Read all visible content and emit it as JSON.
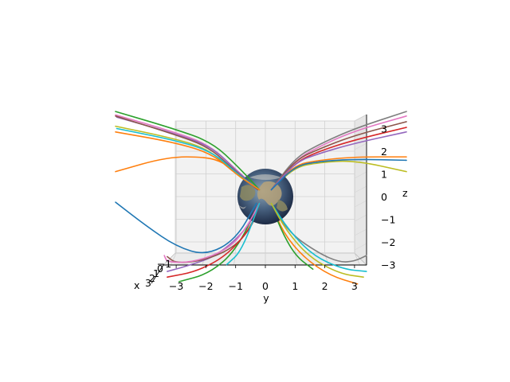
{
  "chart_data": {
    "type": "line",
    "projection": "3d",
    "xlabel": "x",
    "ylabel": "y",
    "zlabel": "z",
    "y_ticks": [
      "−3",
      "−2",
      "−1",
      "0",
      "1",
      "2",
      "3"
    ],
    "z_ticks": [
      "3",
      "2",
      "1",
      "0",
      "−1",
      "−2",
      "−3"
    ],
    "x_ticks": [
      "3",
      "2",
      "1",
      "0",
      "−1"
    ],
    "ylim": [
      -3.3,
      3.3
    ],
    "zlim": [
      -3.3,
      3.3
    ],
    "grid": true,
    "legend": "none",
    "sphere": {
      "radius": 1
    },
    "series_colors": [
      "#1f77b4",
      "#ff7f0e",
      "#2ca02c",
      "#d62728",
      "#9467bd",
      "#8c564b",
      "#e377c2",
      "#7f7f7f",
      "#bcbd22",
      "#17becf"
    ],
    "series": [
      {
        "color": "#2ca02c",
        "points": [
          [
            -5.1,
            3.75
          ],
          [
            -3.1,
            3.0
          ],
          [
            -1.8,
            2.4
          ],
          [
            -0.9,
            1.3
          ],
          [
            -0.2,
            0.3
          ]
        ]
      },
      {
        "color": "#e377c2",
        "points": [
          [
            -5.2,
            3.6
          ],
          [
            -3.2,
            2.9
          ],
          [
            -1.9,
            2.3
          ],
          [
            -1.0,
            1.2
          ],
          [
            -0.25,
            0.3
          ]
        ]
      },
      {
        "color": "#8c564b",
        "points": [
          [
            -5.1,
            3.55
          ],
          [
            -3.2,
            2.8
          ],
          [
            -1.9,
            2.2
          ],
          [
            -1.0,
            1.1
          ],
          [
            -0.25,
            0.3
          ]
        ]
      },
      {
        "color": "#9467bd",
        "points": [
          [
            -5.0,
            3.5
          ],
          [
            -3.1,
            2.8
          ],
          [
            -1.8,
            2.2
          ],
          [
            -0.95,
            1.1
          ],
          [
            -0.2,
            0.3
          ]
        ]
      },
      {
        "color": "#17becf",
        "points": [
          [
            -5.0,
            3.0
          ],
          [
            -3.1,
            2.5
          ],
          [
            -1.8,
            2.0
          ],
          [
            -0.95,
            1.0
          ],
          [
            -0.2,
            0.3
          ]
        ]
      },
      {
        "color": "#bcbd22",
        "points": [
          [
            -5.1,
            3.1
          ],
          [
            -3.2,
            2.6
          ],
          [
            -1.9,
            2.1
          ],
          [
            -1.0,
            1.0
          ],
          [
            -0.25,
            0.3
          ]
        ]
      },
      {
        "color": "#ff7f0e",
        "points": [
          [
            -5.1,
            2.85
          ],
          [
            -3.1,
            2.4
          ],
          [
            -1.8,
            1.9
          ],
          [
            -1.0,
            1.0
          ],
          [
            -0.2,
            0.3
          ]
        ]
      },
      {
        "color": "#ff7f0e",
        "points": [
          [
            -5.1,
            1.1
          ],
          [
            -3.3,
            1.75
          ],
          [
            -2.0,
            1.75
          ],
          [
            -1.4,
            1.5
          ],
          [
            -0.9,
            1.0
          ],
          [
            -0.3,
            0.3
          ]
        ]
      },
      {
        "color": "#7f7f7f",
        "points": [
          [
            4.9,
            3.75
          ],
          [
            3.0,
            3.0
          ],
          [
            1.8,
            2.3
          ],
          [
            1.0,
            1.7
          ],
          [
            0.2,
            0.3
          ]
        ]
      },
      {
        "color": "#e377c2",
        "points": [
          [
            4.9,
            3.55
          ],
          [
            3.0,
            2.9
          ],
          [
            1.8,
            2.2
          ],
          [
            1.0,
            1.6
          ],
          [
            0.2,
            0.3
          ]
        ]
      },
      {
        "color": "#8c564b",
        "points": [
          [
            4.9,
            3.3
          ],
          [
            3.0,
            2.7
          ],
          [
            1.8,
            2.1
          ],
          [
            1.0,
            1.6
          ],
          [
            0.2,
            0.3
          ]
        ]
      },
      {
        "color": "#d62728",
        "points": [
          [
            4.9,
            3.05
          ],
          [
            3.0,
            2.5
          ],
          [
            1.8,
            2.0
          ],
          [
            1.0,
            1.5
          ],
          [
            0.2,
            0.3
          ]
        ]
      },
      {
        "color": "#9467bd",
        "points": [
          [
            4.9,
            2.85
          ],
          [
            3.0,
            2.35
          ],
          [
            1.8,
            1.9
          ],
          [
            1.0,
            1.5
          ],
          [
            0.2,
            0.3
          ]
        ]
      },
      {
        "color": "#ff7f0e",
        "points": [
          [
            4.9,
            1.75
          ],
          [
            3.0,
            1.75
          ],
          [
            1.8,
            1.6
          ],
          [
            1.0,
            1.4
          ],
          [
            0.2,
            0.3
          ]
        ]
      },
      {
        "color": "#1f77b4",
        "points": [
          [
            4.9,
            1.6
          ],
          [
            3.0,
            1.65
          ],
          [
            1.8,
            1.55
          ],
          [
            1.0,
            1.35
          ],
          [
            0.2,
            0.3
          ]
        ]
      },
      {
        "color": "#bcbd22",
        "points": [
          [
            4.9,
            1.1
          ],
          [
            3.0,
            1.6
          ],
          [
            1.8,
            1.5
          ],
          [
            1.0,
            1.3
          ],
          [
            0.2,
            0.3
          ]
        ]
      },
      {
        "color": "#1f77b4",
        "points": [
          [
            -5.1,
            -0.25
          ],
          [
            -4.0,
            -1.3
          ],
          [
            -3.0,
            -2.2
          ],
          [
            -2.0,
            -2.6
          ],
          [
            -1.0,
            -1.9
          ],
          [
            -0.3,
            -0.3
          ]
        ]
      },
      {
        "color": "#2ca02c",
        "points": [
          [
            -2.9,
            -3.75
          ],
          [
            -1.9,
            -3.4
          ],
          [
            -1.0,
            -2.4
          ],
          [
            -0.2,
            -0.3
          ]
        ]
      },
      {
        "color": "#d62728",
        "points": [
          [
            -3.3,
            -3.55
          ],
          [
            -2.3,
            -3.3
          ],
          [
            -1.3,
            -2.6
          ],
          [
            -0.5,
            -1.4
          ],
          [
            -0.2,
            -0.3
          ]
        ]
      },
      {
        "color": "#9467bd",
        "points": [
          [
            -3.3,
            -3.3
          ],
          [
            -2.6,
            -3.05
          ],
          [
            -1.6,
            -2.6
          ],
          [
            -0.6,
            -1.4
          ],
          [
            -0.2,
            -0.3
          ]
        ]
      },
      {
        "color": "#e377c2",
        "points": [
          [
            -3.4,
            -2.6
          ],
          [
            -3.3,
            -2.9
          ],
          [
            -2.4,
            -2.9
          ],
          [
            -1.2,
            -2.3
          ],
          [
            -0.6,
            -1.3
          ],
          [
            -0.2,
            -0.3
          ]
        ]
      },
      {
        "color": "#8c564b",
        "points": [
          [
            -3.3,
            -2.65
          ],
          [
            -3.0,
            -2.95
          ],
          [
            -2.0,
            -2.8
          ],
          [
            -1.0,
            -2.2
          ],
          [
            -0.4,
            -1.2
          ],
          [
            -0.2,
            -0.3
          ]
        ]
      },
      {
        "color": "#17becf",
        "points": [
          [
            -1.3,
            -3.0
          ],
          [
            -0.8,
            -2.4
          ],
          [
            -0.2,
            -0.3
          ]
        ]
      },
      {
        "color": "#7f7f7f",
        "points": [
          [
            0.2,
            -0.3
          ],
          [
            0.8,
            -1.6
          ],
          [
            1.8,
            -2.5
          ],
          [
            2.5,
            -2.9
          ],
          [
            3.0,
            -2.85
          ],
          [
            3.4,
            -2.6
          ]
        ]
      },
      {
        "color": "#17becf",
        "points": [
          [
            0.2,
            -0.3
          ],
          [
            0.8,
            -1.5
          ],
          [
            1.6,
            -2.6
          ],
          [
            2.6,
            -3.2
          ],
          [
            3.4,
            -3.3
          ]
        ]
      },
      {
        "color": "#ff7f0e",
        "points": [
          [
            0.2,
            -0.3
          ],
          [
            0.6,
            -1.6
          ],
          [
            1.3,
            -2.7
          ],
          [
            2.2,
            -3.5
          ],
          [
            3.1,
            -3.85
          ]
        ]
      },
      {
        "color": "#bcbd22",
        "points": [
          [
            0.2,
            -0.3
          ],
          [
            0.7,
            -1.5
          ],
          [
            1.5,
            -2.7
          ],
          [
            2.5,
            -3.4
          ],
          [
            3.3,
            -3.55
          ]
        ]
      },
      {
        "color": "#2ca02c",
        "points": [
          [
            0.2,
            -0.3
          ],
          [
            0.5,
            -1.4
          ],
          [
            1.0,
            -2.6
          ],
          [
            1.6,
            -3.2
          ]
        ]
      }
    ]
  }
}
